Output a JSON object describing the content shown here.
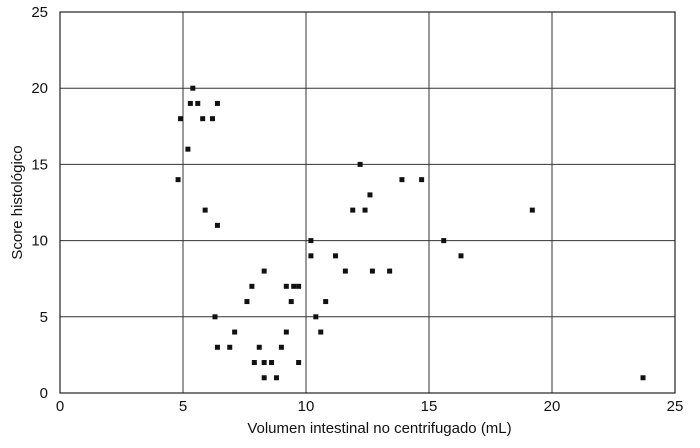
{
  "chart_data": {
    "type": "scatter",
    "title": "",
    "xlabel": "Volumen intestinal no centrifugado (mL)",
    "ylabel": "Score histológico",
    "xlim": [
      0,
      25
    ],
    "ylim": [
      0,
      25
    ],
    "xticks": [
      "0",
      "5",
      "10",
      "15",
      "20",
      "25"
    ],
    "yticks": [
      "0",
      "5",
      "10",
      "15",
      "20",
      "25"
    ],
    "grid": "vertical and horizontal major gridlines",
    "legend": "none",
    "series": [
      {
        "color": "#111111",
        "points": [
          {
            "x": 4.8,
            "y": 14
          },
          {
            "x": 4.9,
            "y": 18
          },
          {
            "x": 5.2,
            "y": 16
          },
          {
            "x": 5.3,
            "y": 19
          },
          {
            "x": 5.4,
            "y": 20
          },
          {
            "x": 5.6,
            "y": 19
          },
          {
            "x": 5.8,
            "y": 18
          },
          {
            "x": 5.9,
            "y": 12
          },
          {
            "x": 6.2,
            "y": 18
          },
          {
            "x": 6.3,
            "y": 5
          },
          {
            "x": 6.4,
            "y": 3
          },
          {
            "x": 6.4,
            "y": 19
          },
          {
            "x": 6.4,
            "y": 11
          },
          {
            "x": 6.9,
            "y": 3
          },
          {
            "x": 7.1,
            "y": 4
          },
          {
            "x": 7.6,
            "y": 6
          },
          {
            "x": 7.8,
            "y": 7
          },
          {
            "x": 7.9,
            "y": 2
          },
          {
            "x": 8.1,
            "y": 3
          },
          {
            "x": 8.3,
            "y": 1
          },
          {
            "x": 8.3,
            "y": 2
          },
          {
            "x": 8.3,
            "y": 8
          },
          {
            "x": 8.6,
            "y": 2
          },
          {
            "x": 8.8,
            "y": 1
          },
          {
            "x": 9.0,
            "y": 3
          },
          {
            "x": 9.2,
            "y": 4
          },
          {
            "x": 9.2,
            "y": 7
          },
          {
            "x": 9.4,
            "y": 6
          },
          {
            "x": 9.5,
            "y": 7
          },
          {
            "x": 9.7,
            "y": 7
          },
          {
            "x": 9.7,
            "y": 2
          },
          {
            "x": 10.2,
            "y": 9
          },
          {
            "x": 10.2,
            "y": 10
          },
          {
            "x": 10.4,
            "y": 5
          },
          {
            "x": 10.6,
            "y": 4
          },
          {
            "x": 10.8,
            "y": 6
          },
          {
            "x": 11.2,
            "y": 9
          },
          {
            "x": 11.6,
            "y": 8
          },
          {
            "x": 11.9,
            "y": 12
          },
          {
            "x": 12.2,
            "y": 15
          },
          {
            "x": 12.4,
            "y": 12
          },
          {
            "x": 12.6,
            "y": 13
          },
          {
            "x": 12.7,
            "y": 8
          },
          {
            "x": 13.4,
            "y": 8
          },
          {
            "x": 13.9,
            "y": 14
          },
          {
            "x": 14.7,
            "y": 14
          },
          {
            "x": 15.6,
            "y": 10
          },
          {
            "x": 16.3,
            "y": 9
          },
          {
            "x": 19.2,
            "y": 12
          },
          {
            "x": 23.7,
            "y": 1
          }
        ]
      }
    ]
  }
}
